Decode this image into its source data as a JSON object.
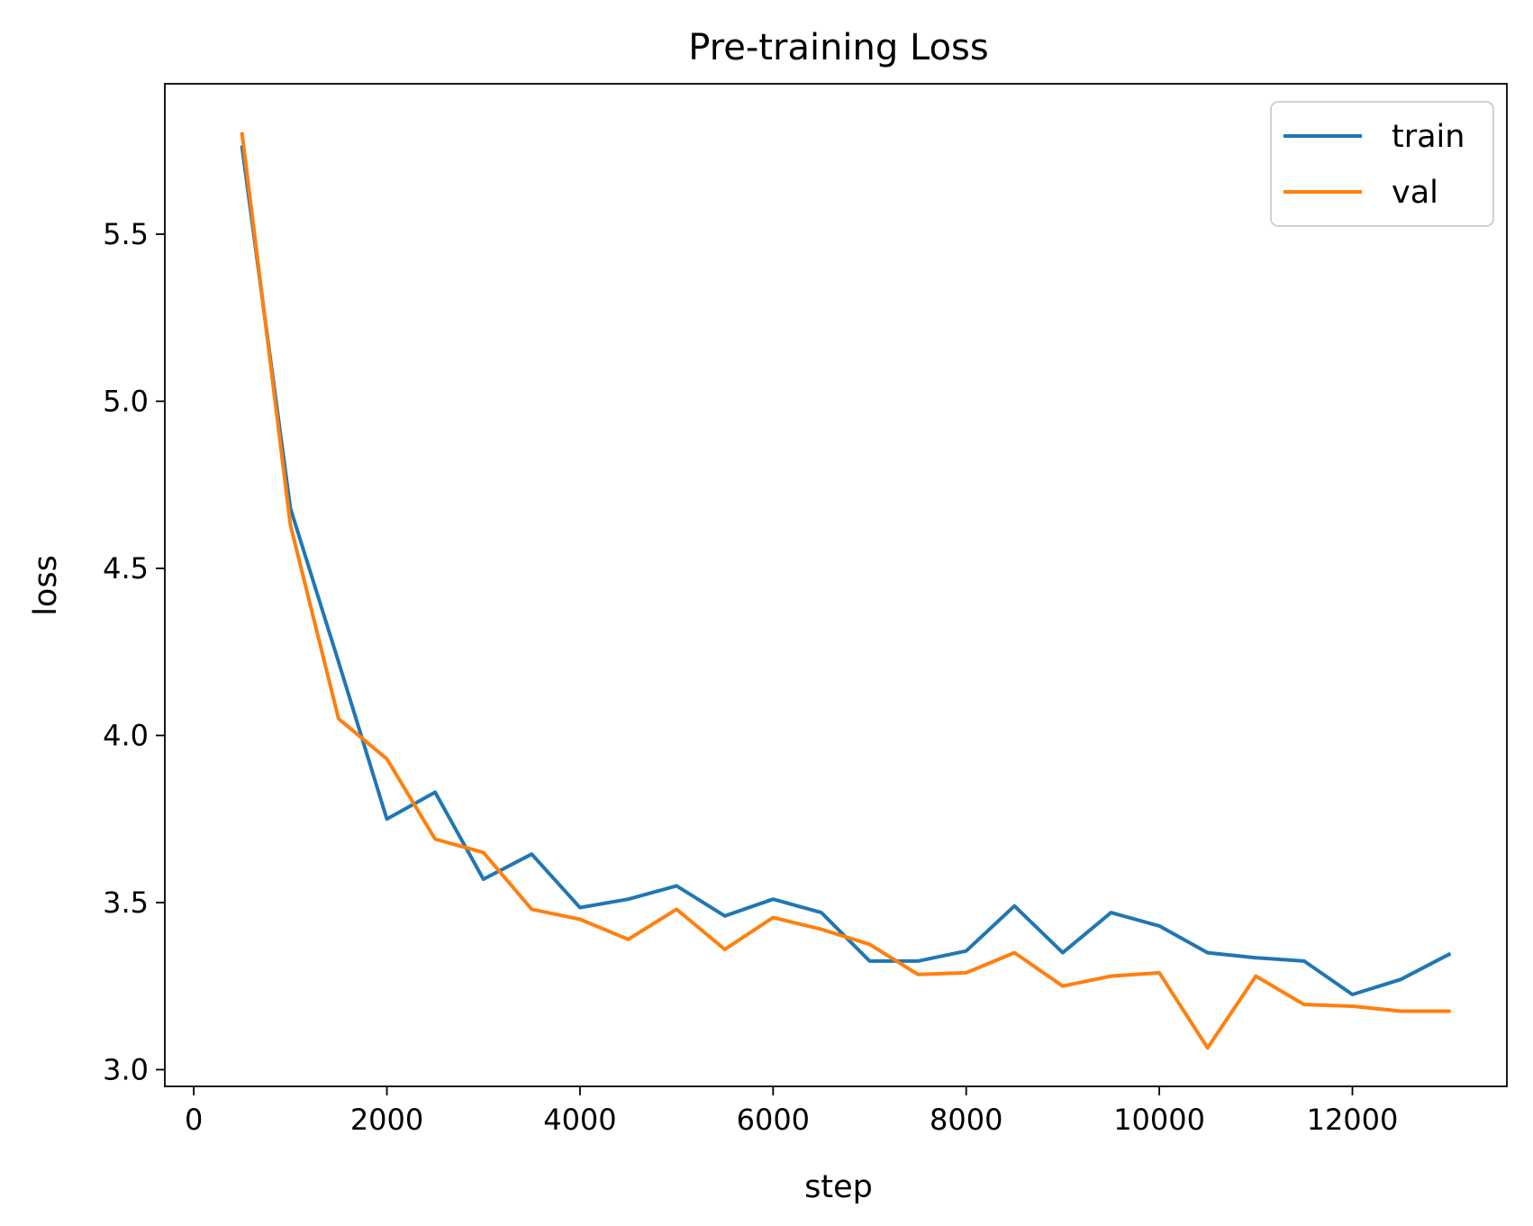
{
  "chart_data": {
    "type": "line",
    "title": "Pre-training Loss",
    "xlabel": "step",
    "ylabel": "loss",
    "xlim": [
      -300,
      13600
    ],
    "ylim": [
      2.95,
      5.95
    ],
    "xticks": [
      0,
      2000,
      4000,
      6000,
      8000,
      10000,
      12000
    ],
    "yticks": [
      3.0,
      3.5,
      4.0,
      4.5,
      5.0,
      5.5
    ],
    "ytick_labels": [
      "3.0",
      "3.5",
      "4.0",
      "4.5",
      "5.0",
      "5.5"
    ],
    "grid": false,
    "legend_position": "top-right",
    "x": [
      500,
      1000,
      1500,
      2000,
      2500,
      3000,
      3500,
      4000,
      4500,
      5000,
      5500,
      6000,
      6500,
      7000,
      7500,
      8000,
      8500,
      9000,
      9500,
      10000,
      10500,
      11000,
      11500,
      12000,
      12500,
      13000
    ],
    "series": [
      {
        "name": "train",
        "color": "#1f77b4",
        "values": [
          5.76,
          4.68,
          4.22,
          3.75,
          3.83,
          3.57,
          3.645,
          3.485,
          3.51,
          3.55,
          3.46,
          3.51,
          3.47,
          3.325,
          3.325,
          3.355,
          3.49,
          3.35,
          3.47,
          3.43,
          3.35,
          3.335,
          3.325,
          3.225,
          3.27,
          3.345
        ]
      },
      {
        "name": "val",
        "color": "#ff7f0e",
        "values": [
          5.8,
          4.63,
          4.05,
          3.93,
          3.69,
          3.65,
          3.48,
          3.45,
          3.39,
          3.48,
          3.36,
          3.455,
          3.42,
          3.375,
          3.285,
          3.29,
          3.35,
          3.25,
          3.28,
          3.29,
          3.065,
          3.28,
          3.195,
          3.19,
          3.175,
          3.175
        ]
      }
    ]
  }
}
